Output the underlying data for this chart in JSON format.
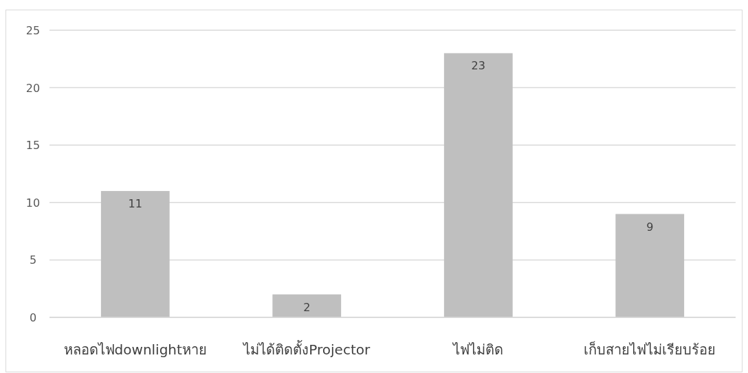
{
  "chart_data": {
    "type": "bar",
    "categories": [
      "หลอดไฟdownlightหาย",
      "ไม่ได้ติดตั้งProjector",
      "ไฟไม่ติด",
      "เก็บสายไฟไม่เรียบร้อย"
    ],
    "values": [
      11,
      2,
      23,
      9
    ],
    "color": "#bfbfbf",
    "ylim": [
      0,
      25
    ],
    "yticks": [
      0,
      5,
      10,
      15,
      20,
      25
    ],
    "grid": "y",
    "data_labels": true
  }
}
